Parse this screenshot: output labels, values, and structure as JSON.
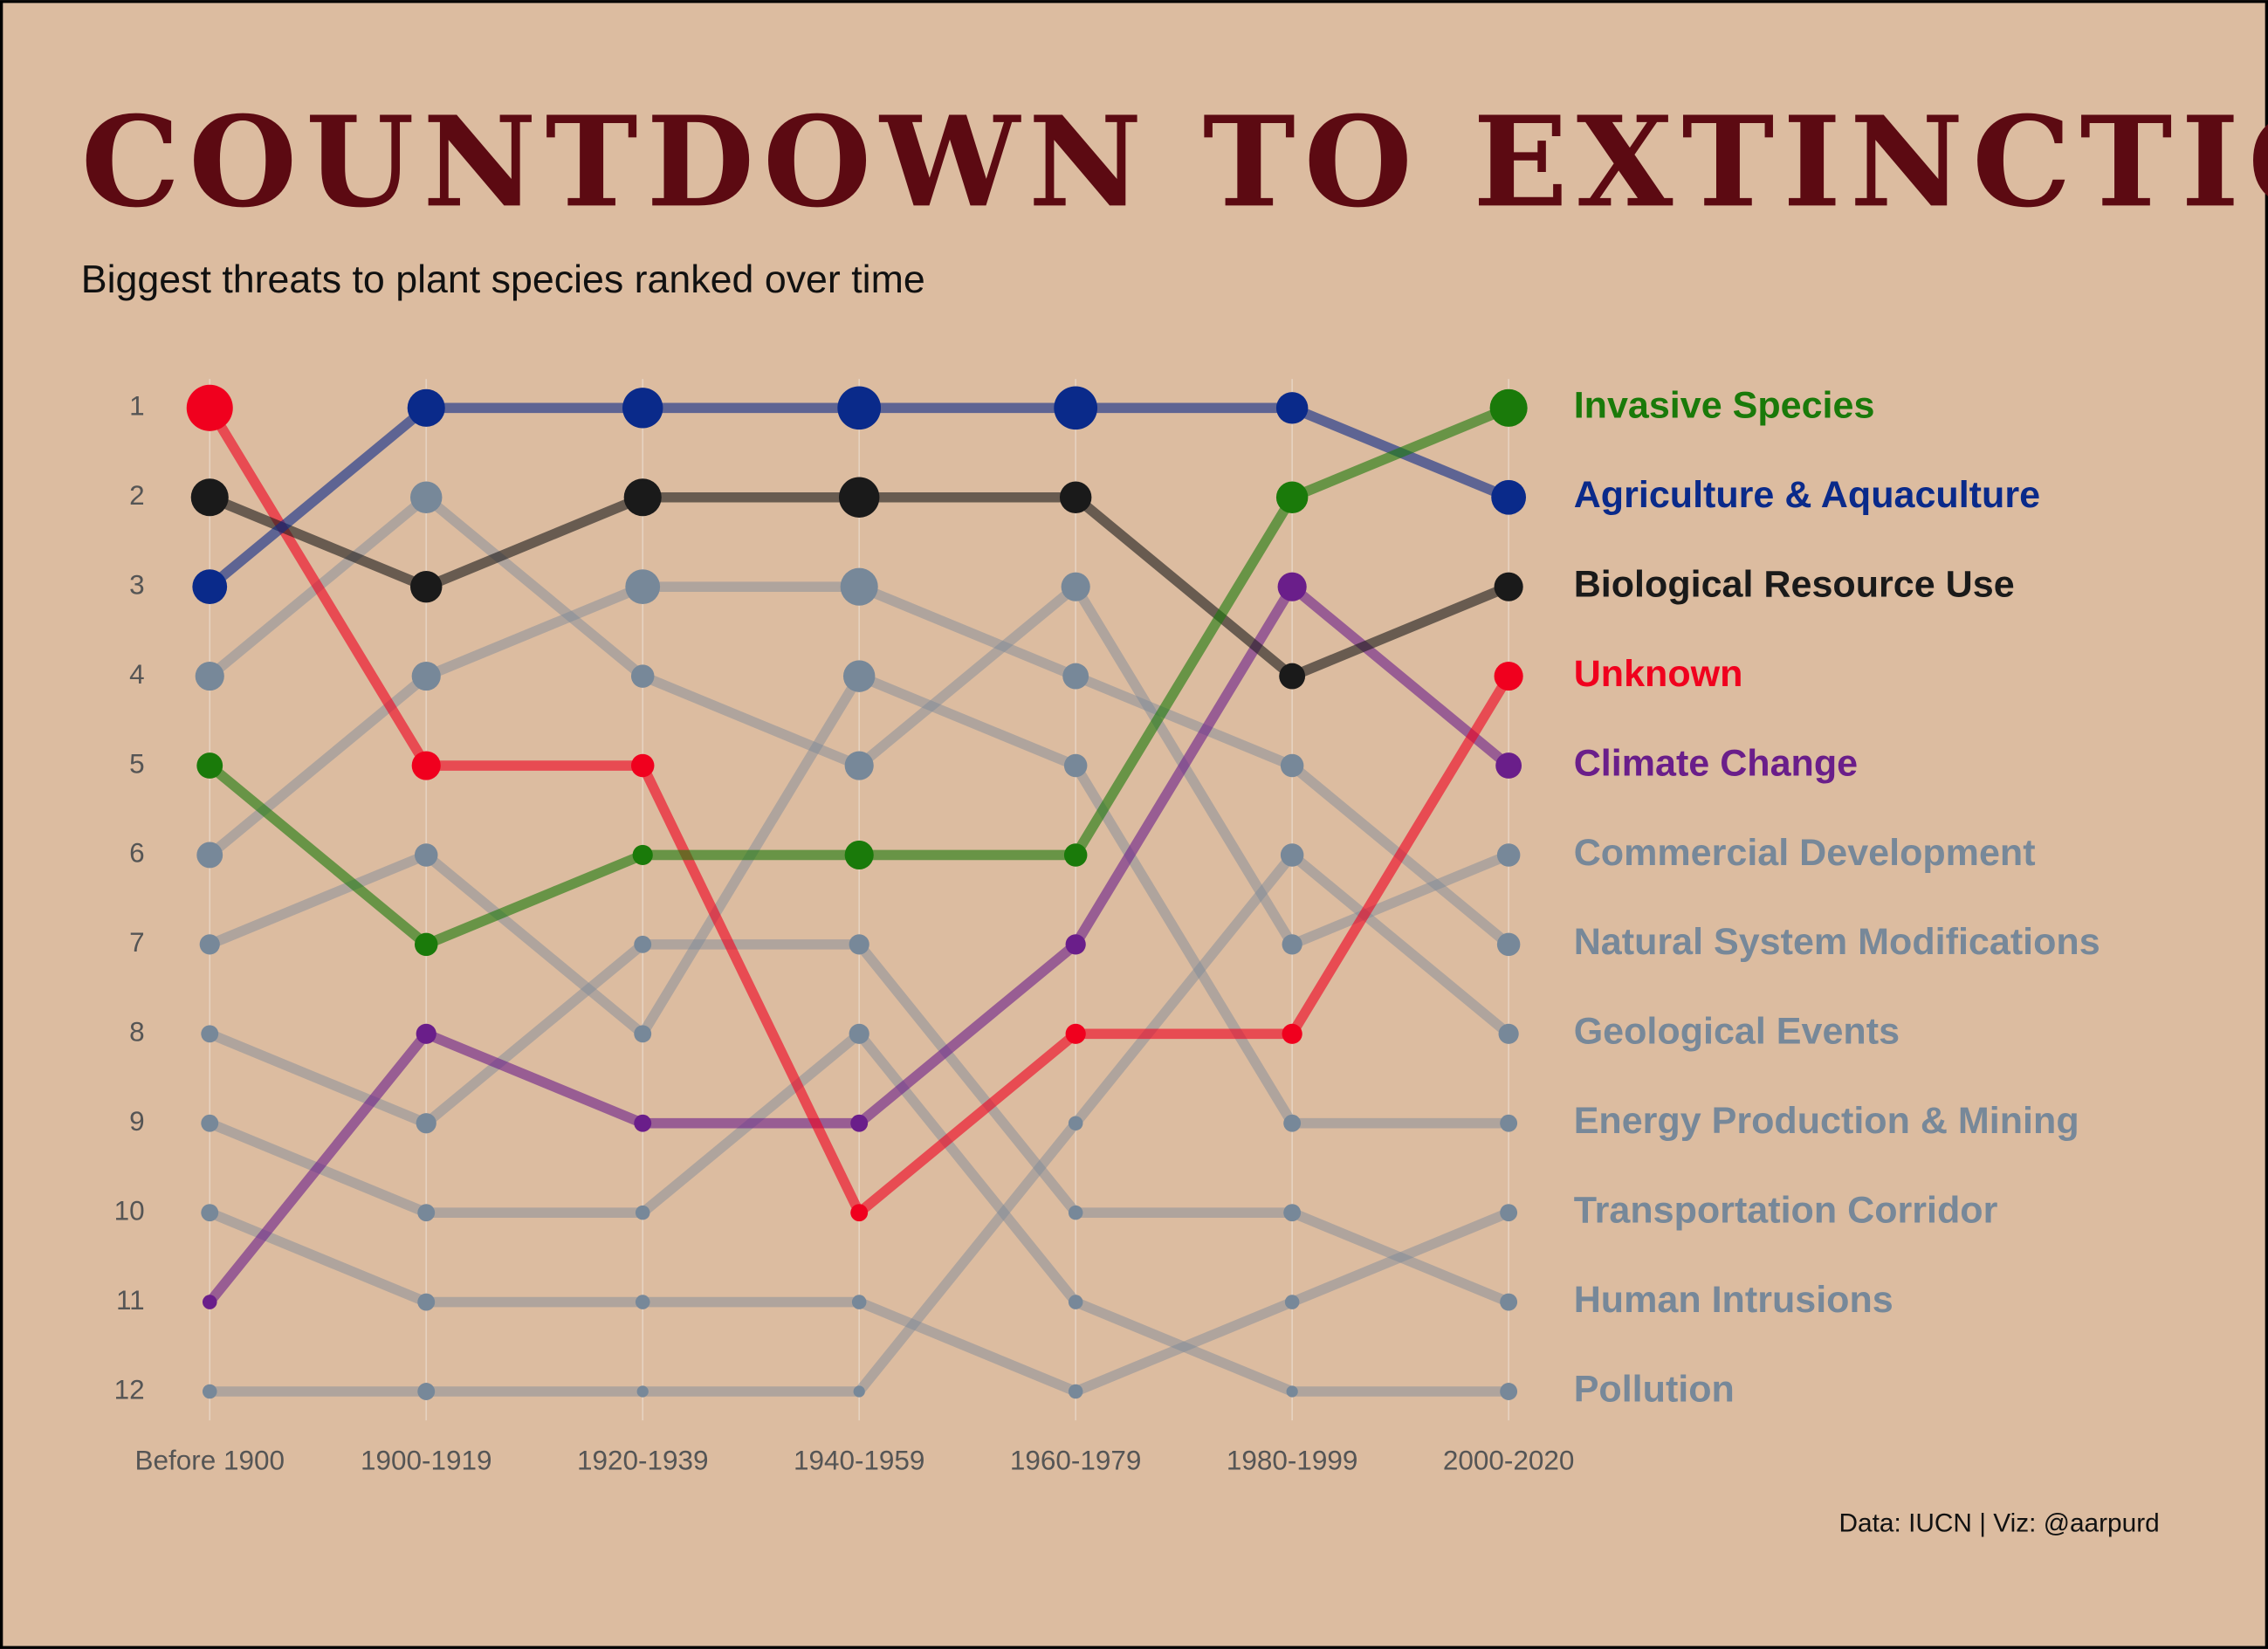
{
  "chart_data": {
    "type": "bump",
    "title": "COUNTDOWN TO EXTINCTION",
    "subtitle": "Biggest threats to plant species ranked over time",
    "caption": "Data: IUCN | Viz: @aarpurd",
    "categories": [
      "Before 1900",
      "1900-1919",
      "1920-1939",
      "1940-1959",
      "1960-1979",
      "1980-1999",
      "2000-2020"
    ],
    "ylim": [
      1,
      12
    ],
    "yticks": [
      1,
      2,
      3,
      4,
      5,
      6,
      7,
      8,
      9,
      10,
      11,
      12
    ],
    "grid": true,
    "series": [
      {
        "name": "Invasive Species",
        "color": "#1a7a0a",
        "values": [
          5,
          7,
          6,
          6,
          6,
          2,
          1
        ],
        "sizes": [
          9,
          8,
          7,
          10,
          8,
          11,
          13
        ]
      },
      {
        "name": "Agriculture & Aquaculture",
        "color": "#0a2a8a",
        "values": [
          3,
          1,
          1,
          1,
          1,
          1,
          2
        ],
        "sizes": [
          12,
          13,
          14,
          15,
          15,
          11,
          12
        ]
      },
      {
        "name": "Biological Resource Use",
        "color": "#1a1a1a",
        "values": [
          2,
          3,
          2,
          2,
          2,
          4,
          3
        ],
        "sizes": [
          13,
          11,
          13,
          14,
          11,
          9,
          10
        ]
      },
      {
        "name": "Unknown",
        "color": "#f0001e",
        "values": [
          1,
          5,
          5,
          10,
          8,
          8,
          4
        ],
        "sizes": [
          16,
          10,
          8,
          6,
          7,
          7,
          10
        ]
      },
      {
        "name": "Climate Change",
        "color": "#6a1e8a",
        "values": [
          11,
          8,
          9,
          9,
          7,
          3,
          5
        ],
        "sizes": [
          5,
          7,
          6,
          6,
          7,
          10,
          9
        ]
      },
      {
        "name": "Commercial Development",
        "color": "#778899",
        "values": [
          4,
          2,
          4,
          5,
          3,
          7,
          6
        ],
        "sizes": [
          10,
          11,
          8,
          10,
          10,
          7,
          8
        ]
      },
      {
        "name": "Natural System Modifications",
        "color": "#778899",
        "values": [
          6,
          4,
          3,
          3,
          4,
          5,
          7
        ],
        "sizes": [
          9,
          10,
          12,
          13,
          9,
          8,
          8
        ]
      },
      {
        "name": "Geological Events",
        "color": "#778899",
        "values": [
          12,
          12,
          12,
          12,
          9,
          6,
          8
        ],
        "sizes": [
          5,
          6,
          4,
          4,
          5,
          8,
          7
        ]
      },
      {
        "name": "Energy Production & Mining",
        "color": "#778899",
        "values": [
          7,
          6,
          8,
          4,
          5,
          9,
          9
        ],
        "sizes": [
          7,
          8,
          6,
          11,
          8,
          6,
          6
        ]
      },
      {
        "name": "Transportation Corridor",
        "color": "#778899",
        "values": [
          10,
          11,
          11,
          11,
          12,
          11,
          10
        ],
        "sizes": [
          6,
          6,
          5,
          5,
          5,
          5,
          6
        ]
      },
      {
        "name": "Human Intrusions",
        "color": "#778899",
        "values": [
          8,
          9,
          7,
          7,
          10,
          10,
          11
        ],
        "sizes": [
          6,
          7,
          6,
          7,
          5,
          6,
          6
        ]
      },
      {
        "name": "Pollution",
        "color": "#778899",
        "values": [
          9,
          10,
          10,
          8,
          11,
          12,
          12
        ],
        "sizes": [
          6,
          6,
          5,
          7,
          5,
          4,
          6
        ]
      }
    ]
  }
}
